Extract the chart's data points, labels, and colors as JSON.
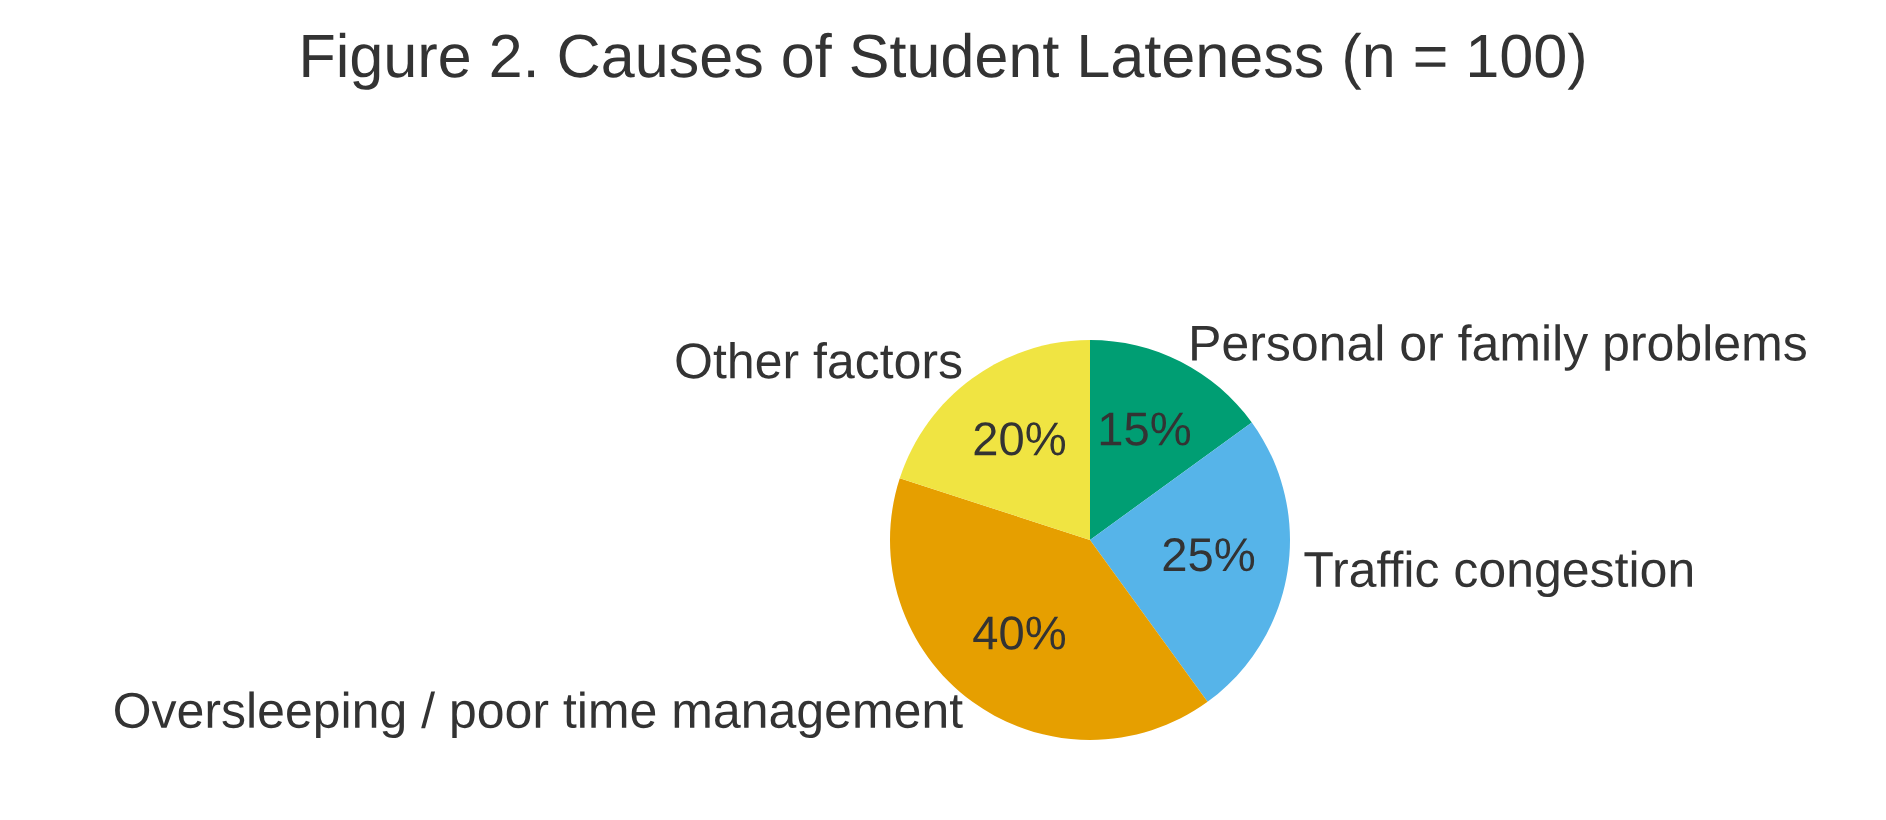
{
  "chart_data": {
    "type": "pie",
    "title": "Figure 2. Causes of Student Lateness (n = 100)",
    "categories": [
      "Personal or family problems",
      "Traffic congestion",
      "Oversleeping / poor time management",
      "Other factors"
    ],
    "values": [
      15,
      25,
      40,
      20
    ],
    "value_labels": [
      "15%",
      "25%",
      "40%",
      "20%"
    ],
    "colors": [
      "#009e73",
      "#56b4e9",
      "#e69f00",
      "#f0e442"
    ],
    "legend": false
  }
}
